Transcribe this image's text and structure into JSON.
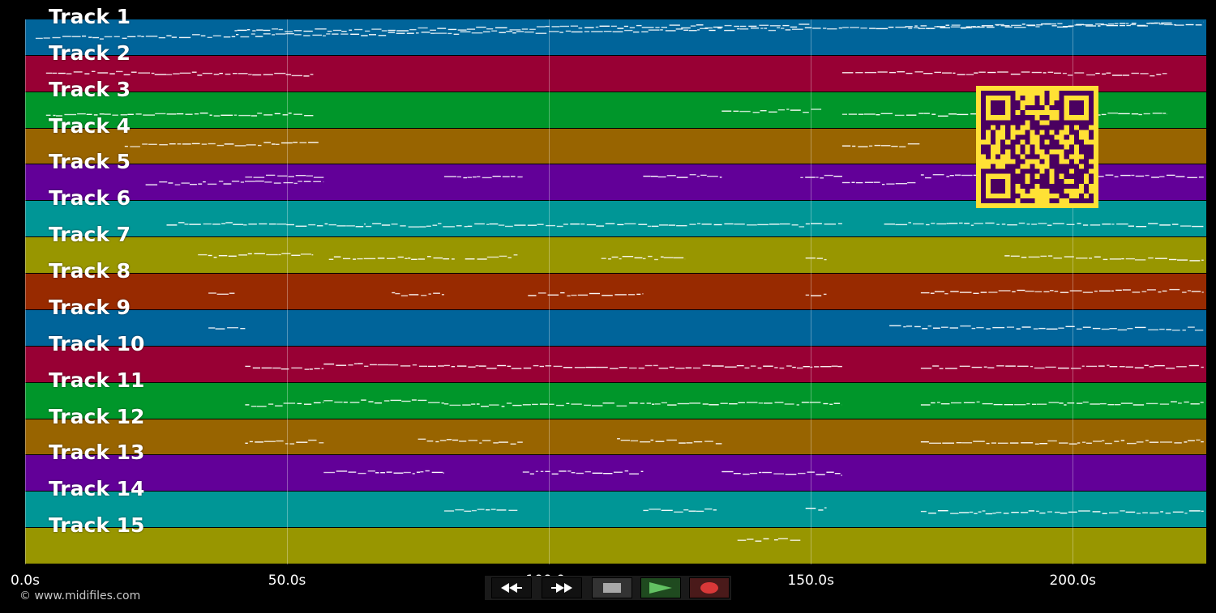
{
  "tracks": [
    {
      "label": "Track 1",
      "color": "#00649a"
    },
    {
      "label": "Track 2",
      "color": "#980034"
    },
    {
      "label": "Track 3",
      "color": "#00962a"
    },
    {
      "label": "Track 4",
      "color": "#986400"
    },
    {
      "label": "Track 5",
      "color": "#620098"
    },
    {
      "label": "Track 6",
      "color": "#009696"
    },
    {
      "label": "Track 7",
      "color": "#989600"
    },
    {
      "label": "Track 8",
      "color": "#982a00"
    },
    {
      "label": "Track 9",
      "color": "#00649a"
    },
    {
      "label": "Track 10",
      "color": "#980034"
    },
    {
      "label": "Track 11",
      "color": "#00962a"
    },
    {
      "label": "Track 12",
      "color": "#986400"
    },
    {
      "label": "Track 13",
      "color": "#620098"
    },
    {
      "label": "Track 14",
      "color": "#009696"
    },
    {
      "label": "Track 15",
      "color": "#989600"
    }
  ],
  "time_axis": {
    "ticks": [
      {
        "value": 0,
        "label": "0.0s"
      },
      {
        "value": 50,
        "label": "50.0s"
      },
      {
        "value": 100,
        "label": "100.0s"
      },
      {
        "value": 150,
        "label": "150.0s"
      },
      {
        "value": 200,
        "label": "200.0s"
      }
    ],
    "range_seconds": [
      0,
      225.5
    ]
  },
  "notes_by_track": [
    [
      [
        2,
        0.5,
        225,
        0.1
      ],
      [
        40,
        0.3,
        150,
        0.15
      ],
      [
        168,
        0.2,
        220,
        0.1
      ]
    ],
    [
      [
        4,
        0.45,
        55,
        0.5
      ],
      [
        156,
        0.45,
        218,
        0.5
      ]
    ],
    [
      [
        4,
        0.6,
        55,
        0.6
      ],
      [
        133,
        0.5,
        152,
        0.5
      ],
      [
        156,
        0.6,
        218,
        0.6
      ]
    ],
    [
      [
        19,
        0.45,
        56,
        0.4
      ],
      [
        156,
        0.45,
        171,
        0.45
      ]
    ],
    [
      [
        23,
        0.5,
        57,
        0.45
      ],
      [
        42,
        0.3,
        57,
        0.3
      ],
      [
        80,
        0.3,
        95,
        0.3
      ],
      [
        118,
        0.3,
        133,
        0.3
      ],
      [
        148,
        0.35,
        156,
        0.3
      ],
      [
        156,
        0.5,
        170,
        0.5
      ],
      [
        171,
        0.3,
        225,
        0.3
      ]
    ],
    [
      [
        27,
        0.6,
        65,
        0.65
      ],
      [
        65,
        0.65,
        156,
        0.65
      ],
      [
        164,
        0.6,
        225,
        0.65
      ]
    ],
    [
      [
        33,
        0.5,
        55,
        0.45
      ],
      [
        58,
        0.55,
        82,
        0.55
      ],
      [
        84,
        0.55,
        94,
        0.5
      ],
      [
        110,
        0.55,
        126,
        0.55
      ],
      [
        149,
        0.55,
        153,
        0.55
      ],
      [
        187,
        0.5,
        225,
        0.6
      ]
    ],
    [
      [
        35,
        0.55,
        40,
        0.55
      ],
      [
        70,
        0.55,
        80,
        0.55
      ],
      [
        96,
        0.55,
        118,
        0.55
      ],
      [
        149,
        0.55,
        153,
        0.55
      ],
      [
        171,
        0.5,
        225,
        0.45
      ]
    ],
    [
      [
        35,
        0.5,
        42,
        0.45
      ],
      [
        165,
        0.45,
        225,
        0.5
      ]
    ],
    [
      [
        42,
        0.55,
        57,
        0.6
      ],
      [
        57,
        0.5,
        80,
        0.5
      ],
      [
        80,
        0.55,
        156,
        0.55
      ],
      [
        171,
        0.55,
        225,
        0.55
      ]
    ],
    [
      [
        42,
        0.6,
        57,
        0.55
      ],
      [
        57,
        0.5,
        80,
        0.5
      ],
      [
        80,
        0.6,
        156,
        0.55
      ],
      [
        171,
        0.55,
        225,
        0.55
      ]
    ],
    [
      [
        42,
        0.65,
        57,
        0.6
      ],
      [
        75,
        0.55,
        95,
        0.65
      ],
      [
        113,
        0.55,
        133,
        0.65
      ],
      [
        171,
        0.65,
        225,
        0.6
      ]
    ],
    [
      [
        57,
        0.45,
        80,
        0.45
      ],
      [
        95,
        0.45,
        118,
        0.45
      ],
      [
        133,
        0.45,
        156,
        0.5
      ]
    ],
    [
      [
        80,
        0.5,
        94,
        0.5
      ],
      [
        118,
        0.5,
        132,
        0.5
      ],
      [
        149,
        0.45,
        153,
        0.45
      ],
      [
        171,
        0.55,
        225,
        0.55
      ]
    ],
    [
      [
        136,
        0.3,
        142,
        0.3
      ],
      [
        143,
        0.3,
        148,
        0.3
      ]
    ]
  ],
  "qr_code": {
    "fg": "#4a0060",
    "bg": "#ffe135"
  },
  "copyright": "© www.midifiles.com",
  "transport": {
    "rewind": "rewind-icon",
    "fast_forward": "fast-forward-icon",
    "stop": "stop-icon",
    "play": "play-icon",
    "record": "record-icon"
  }
}
